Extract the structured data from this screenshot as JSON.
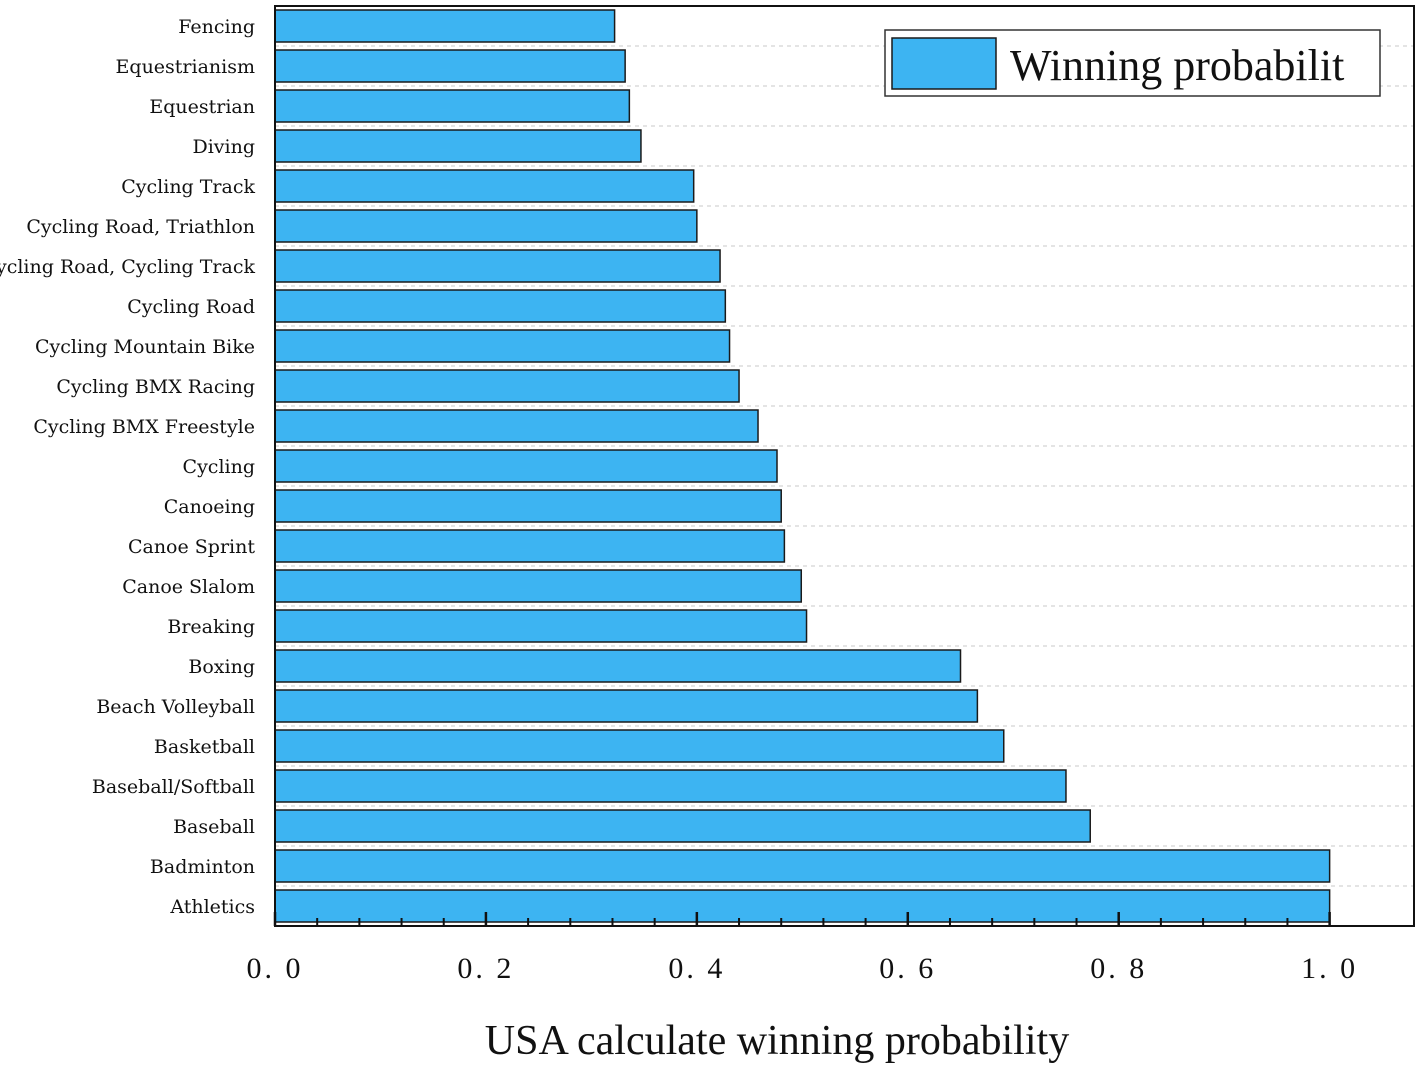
{
  "chart_data": {
    "type": "bar",
    "orientation": "horizontal",
    "categories": [
      "Fencing",
      "Equestrianism",
      "Equestrian",
      "Diving",
      "Cycling Track",
      "Cycling Road, Triathlon",
      "Cycling Road, Cycling Track",
      "Cycling Road",
      "Cycling Mountain Bike",
      "Cycling BMX Racing",
      "Cycling BMX Freestyle",
      "Cycling",
      "Canoeing",
      "Canoe Sprint",
      "Canoe Slalom",
      "Breaking",
      "Boxing",
      "Beach Volleyball",
      "Basketball",
      "Baseball/Softball",
      "Baseball",
      "Badminton",
      "Athletics"
    ],
    "series": [
      {
        "name": "Winning probabilit",
        "color": "#3db4f2",
        "values": [
          0.322,
          0.332,
          0.336,
          0.347,
          0.397,
          0.4,
          0.422,
          0.427,
          0.431,
          0.44,
          0.458,
          0.476,
          0.48,
          0.483,
          0.499,
          0.504,
          0.65,
          0.666,
          0.691,
          0.75,
          0.773,
          1.0,
          1.0
        ]
      }
    ],
    "xlabel": "USA calculate winning probability",
    "ylabel": "",
    "title": "",
    "xlim": [
      0.0,
      1.08
    ],
    "xticks": [
      0.0,
      0.2,
      0.4,
      0.6,
      0.8,
      1.0
    ],
    "xtick_labels": [
      "0. 0",
      "0. 2",
      "0. 4",
      "0. 6",
      "0. 8",
      "1. 0"
    ],
    "grid": "horizontal dashed",
    "legend_position": "top-right"
  }
}
